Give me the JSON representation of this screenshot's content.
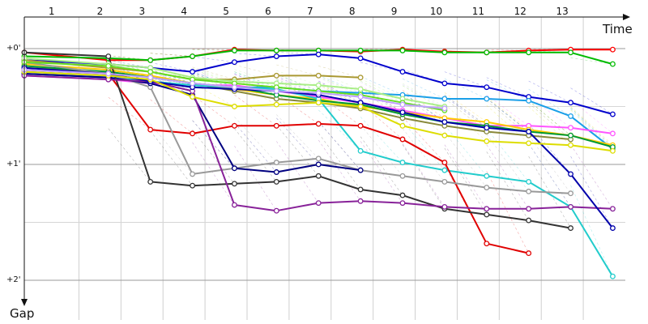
{
  "chart_data": {
    "type": "line",
    "xlabel": "Time",
    "ylabel": "Gap",
    "lap_labels": [
      "1",
      "2",
      "3",
      "4",
      "5",
      "6",
      "7",
      "8",
      "9",
      "10",
      "11",
      "12",
      "13"
    ],
    "y_ticks": [
      {
        "label": "+0'",
        "value": 0
      },
      {
        "label": "+1'",
        "value": 60
      },
      {
        "label": "+2'",
        "value": 120
      }
    ],
    "minor_y_ticks": [
      30,
      90
    ],
    "xlim": [
      0,
      14.3
    ],
    "ylim": [
      0,
      130
    ],
    "x_grid": [
      1.3,
      2.3,
      3.3,
      4.3,
      5.3,
      6.3,
      7.3,
      8.3,
      9.3,
      10.3,
      11.3,
      12.3,
      13.3
    ],
    "grid": true,
    "series": [
      {
        "color": "#ff0000",
        "points": [
          [
            0,
            2
          ],
          [
            2,
            6
          ],
          [
            3,
            6
          ],
          [
            4,
            4
          ],
          [
            5,
            0.5
          ],
          [
            6,
            1
          ],
          [
            7,
            1
          ],
          [
            8,
            1.5
          ],
          [
            9,
            0.5
          ],
          [
            10,
            1.5
          ],
          [
            11,
            2
          ],
          [
            12,
            1
          ],
          [
            13,
            0.5
          ],
          [
            14,
            0.5
          ]
        ]
      },
      {
        "color": "#00bb00",
        "points": [
          [
            0,
            4
          ],
          [
            2,
            5
          ],
          [
            3,
            6
          ],
          [
            4,
            4
          ],
          [
            5,
            1
          ],
          [
            6,
            1
          ],
          [
            7,
            1
          ],
          [
            8,
            1
          ],
          [
            9,
            1
          ],
          [
            10,
            2
          ],
          [
            11,
            2
          ],
          [
            12,
            2
          ],
          [
            13,
            2
          ],
          [
            14,
            8
          ]
        ]
      },
      {
        "color": "#0000cc",
        "points": [
          [
            0,
            6
          ],
          [
            2,
            8
          ],
          [
            3,
            10
          ],
          [
            4,
            12
          ],
          [
            5,
            7
          ],
          [
            6,
            4
          ],
          [
            7,
            3
          ],
          [
            8,
            5
          ],
          [
            9,
            12
          ],
          [
            10,
            18
          ],
          [
            11,
            20
          ],
          [
            12,
            25
          ],
          [
            13,
            28
          ],
          [
            14,
            34
          ]
        ]
      },
      {
        "color": "#1a9fe8",
        "points": [
          [
            0,
            13
          ],
          [
            2,
            15
          ],
          [
            3,
            17
          ],
          [
            4,
            19
          ],
          [
            5,
            20
          ],
          [
            6,
            20
          ],
          [
            7,
            22
          ],
          [
            8,
            23
          ],
          [
            9,
            24
          ],
          [
            10,
            26
          ],
          [
            11,
            26
          ],
          [
            12,
            27
          ],
          [
            13,
            35
          ],
          [
            14,
            52
          ]
        ]
      },
      {
        "color": "#ff55ff",
        "points": [
          [
            0,
            14
          ],
          [
            2,
            16
          ],
          [
            3,
            18
          ],
          [
            4,
            19
          ],
          [
            5,
            19
          ],
          [
            6,
            22
          ],
          [
            7,
            25
          ],
          [
            8,
            28
          ],
          [
            9,
            32
          ],
          [
            10,
            36
          ],
          [
            11,
            40
          ],
          [
            12,
            40
          ],
          [
            13,
            41
          ],
          [
            14,
            44
          ]
        ]
      },
      {
        "color": "#ffcc00",
        "points": [
          [
            0,
            8
          ],
          [
            2,
            11
          ],
          [
            3,
            14
          ],
          [
            4,
            18
          ],
          [
            5,
            21
          ],
          [
            6,
            24
          ],
          [
            7,
            26
          ],
          [
            8,
            30
          ],
          [
            9,
            33
          ],
          [
            10,
            36
          ],
          [
            11,
            38
          ],
          [
            12,
            42
          ],
          [
            13,
            45
          ],
          [
            14,
            50
          ]
        ]
      },
      {
        "color": "#8a8a3c",
        "points": [
          [
            0,
            10
          ],
          [
            2,
            12
          ],
          [
            3,
            15
          ],
          [
            4,
            18
          ],
          [
            5,
            22
          ],
          [
            6,
            26
          ],
          [
            7,
            28
          ],
          [
            8,
            31
          ],
          [
            9,
            36
          ],
          [
            10,
            40
          ],
          [
            11,
            43
          ],
          [
            12,
            45
          ],
          [
            13,
            47
          ]
        ]
      },
      {
        "color": "#009933",
        "points": [
          [
            0,
            9
          ],
          [
            2,
            12
          ],
          [
            3,
            15
          ],
          [
            4,
            18
          ],
          [
            5,
            20
          ],
          [
            6,
            24
          ],
          [
            7,
            27
          ],
          [
            8,
            29
          ],
          [
            9,
            34
          ],
          [
            10,
            38
          ],
          [
            11,
            40
          ],
          [
            12,
            43
          ],
          [
            13,
            45
          ],
          [
            14,
            51
          ]
        ]
      },
      {
        "color": "#22cccc",
        "points": [
          [
            0,
            12
          ],
          [
            2,
            14
          ],
          [
            3,
            17
          ],
          [
            4,
            19
          ],
          [
            5,
            20
          ],
          [
            6,
            21
          ],
          [
            7,
            26
          ],
          [
            8,
            53
          ],
          [
            9,
            59
          ],
          [
            10,
            63
          ],
          [
            11,
            66
          ],
          [
            12,
            69
          ],
          [
            13,
            82
          ],
          [
            14,
            118
          ]
        ]
      },
      {
        "color": "#e00000",
        "points": [
          [
            0,
            11
          ],
          [
            2,
            13
          ],
          [
            3,
            42
          ],
          [
            4,
            44
          ],
          [
            5,
            40
          ],
          [
            6,
            40
          ],
          [
            7,
            39
          ],
          [
            8,
            40
          ],
          [
            9,
            47
          ],
          [
            10,
            59
          ],
          [
            11,
            101
          ],
          [
            12,
            106
          ]
        ]
      },
      {
        "color": "#999999",
        "points": [
          [
            0,
            7
          ],
          [
            2,
            13
          ],
          [
            3,
            20
          ],
          [
            4,
            65
          ],
          [
            5,
            62
          ],
          [
            6,
            59
          ],
          [
            7,
            57
          ],
          [
            8,
            63
          ],
          [
            9,
            66
          ],
          [
            10,
            69
          ],
          [
            11,
            72
          ],
          [
            12,
            74
          ],
          [
            13,
            75
          ]
        ]
      },
      {
        "color": "#000080",
        "points": [
          [
            0,
            13
          ],
          [
            2,
            15
          ],
          [
            3,
            18
          ],
          [
            4,
            24
          ],
          [
            5,
            62
          ],
          [
            6,
            64
          ],
          [
            7,
            60
          ],
          [
            8,
            63
          ]
        ]
      },
      {
        "color": "#333333",
        "points": [
          [
            0,
            2
          ],
          [
            2,
            4
          ],
          [
            3,
            69
          ],
          [
            4,
            71
          ],
          [
            5,
            70
          ],
          [
            6,
            69
          ],
          [
            7,
            66
          ],
          [
            8,
            73
          ],
          [
            9,
            76
          ],
          [
            10,
            83
          ],
          [
            11,
            86
          ],
          [
            12,
            89
          ],
          [
            13,
            93
          ]
        ]
      },
      {
        "color": "#882299",
        "points": [
          [
            0,
            14
          ],
          [
            2,
            16
          ],
          [
            3,
            17
          ],
          [
            4,
            22
          ],
          [
            5,
            81
          ],
          [
            6,
            84
          ],
          [
            7,
            80
          ],
          [
            8,
            79
          ],
          [
            9,
            80
          ],
          [
            10,
            82
          ],
          [
            11,
            83
          ],
          [
            12,
            83
          ],
          [
            13,
            82
          ],
          [
            14,
            83
          ]
        ]
      },
      {
        "color": "#aa9933",
        "points": [
          [
            0,
            6
          ],
          [
            2,
            10
          ],
          [
            3,
            12
          ],
          [
            4,
            16
          ],
          [
            5,
            16
          ],
          [
            6,
            14
          ],
          [
            7,
            14
          ],
          [
            8,
            15
          ]
        ]
      },
      {
        "color": "#0000aa",
        "points": [
          [
            0,
            10
          ],
          [
            2,
            13
          ],
          [
            3,
            17
          ],
          [
            4,
            20
          ],
          [
            5,
            21
          ],
          [
            6,
            22
          ],
          [
            7,
            24
          ],
          [
            8,
            28
          ],
          [
            9,
            33
          ],
          [
            10,
            38
          ],
          [
            11,
            41
          ],
          [
            12,
            43
          ],
          [
            13,
            65
          ],
          [
            14,
            93
          ]
        ]
      },
      {
        "color": "#dddd00",
        "points": [
          [
            0,
            12
          ],
          [
            2,
            14
          ],
          [
            3,
            16
          ],
          [
            4,
            25
          ],
          [
            5,
            30
          ],
          [
            6,
            29
          ],
          [
            7,
            28
          ],
          [
            8,
            30
          ],
          [
            9,
            40
          ],
          [
            10,
            45
          ],
          [
            11,
            48
          ],
          [
            12,
            49
          ],
          [
            13,
            50
          ],
          [
            14,
            53
          ]
        ]
      },
      {
        "color": "#aaee88",
        "points": [
          [
            0,
            5
          ],
          [
            2,
            8
          ],
          [
            3,
            10
          ],
          [
            4,
            15
          ],
          [
            5,
            17
          ],
          [
            6,
            18
          ],
          [
            7,
            19
          ],
          [
            8,
            21
          ],
          [
            9,
            26
          ],
          [
            10,
            30
          ]
        ]
      },
      {
        "color": "#66dd22",
        "points": [
          [
            0,
            7
          ],
          [
            2,
            9
          ],
          [
            3,
            12
          ],
          [
            4,
            16
          ],
          [
            5,
            18
          ],
          [
            6,
            20
          ],
          [
            7,
            22
          ],
          [
            8,
            24
          ],
          [
            9,
            28
          ],
          [
            10,
            32
          ]
        ]
      },
      {
        "color": "#c0a0ff",
        "points": [
          [
            0,
            11
          ],
          [
            2,
            13
          ],
          [
            3,
            15
          ],
          [
            4,
            18
          ],
          [
            5,
            20
          ],
          [
            6,
            22
          ],
          [
            7,
            23
          ],
          [
            8,
            25
          ],
          [
            9,
            29
          ],
          [
            10,
            31
          ]
        ]
      }
    ]
  }
}
